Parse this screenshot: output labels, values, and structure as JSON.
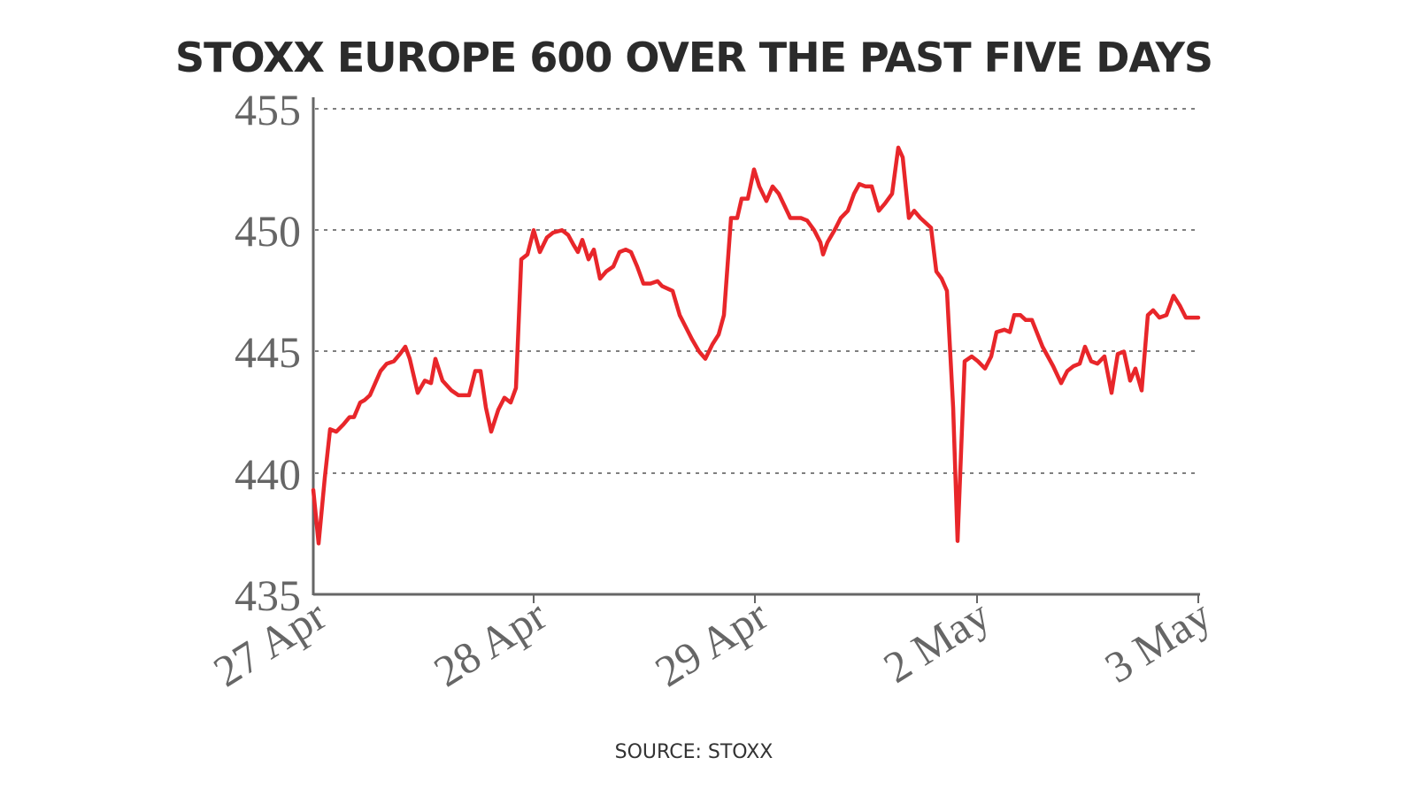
{
  "chart_data": {
    "type": "line",
    "title": "STOXX EUROPE 600 OVER THE PAST FIVE DAYS",
    "source": "SOURCE: STOXX",
    "xlabel": "",
    "ylabel": "",
    "ylim": [
      435,
      455
    ],
    "yticks": [
      435,
      440,
      445,
      450,
      455
    ],
    "xticks": [
      "27 Apr",
      "28 Apr",
      "29 Apr",
      "2 May",
      "3 May"
    ],
    "grid": {
      "y": true,
      "x": false,
      "style": "dotted"
    },
    "legend": null,
    "line_color": "#e8262a",
    "series": [
      {
        "name": "STOXX Europe 600",
        "points": [
          [
            0.0,
            439.3
          ],
          [
            0.006,
            437.1
          ],
          [
            0.013,
            439.8
          ],
          [
            0.019,
            441.8
          ],
          [
            0.026,
            441.7
          ],
          [
            0.034,
            442.0
          ],
          [
            0.041,
            442.3
          ],
          [
            0.046,
            442.3
          ],
          [
            0.053,
            442.9
          ],
          [
            0.058,
            443.0
          ],
          [
            0.064,
            443.2
          ],
          [
            0.07,
            443.7
          ],
          [
            0.076,
            444.2
          ],
          [
            0.083,
            444.5
          ],
          [
            0.091,
            444.6
          ],
          [
            0.098,
            444.9
          ],
          [
            0.104,
            445.2
          ],
          [
            0.109,
            444.7
          ],
          [
            0.118,
            443.3
          ],
          [
            0.126,
            443.8
          ],
          [
            0.133,
            443.7
          ],
          [
            0.138,
            444.7
          ],
          [
            0.146,
            443.8
          ],
          [
            0.156,
            443.4
          ],
          [
            0.164,
            443.2
          ],
          [
            0.171,
            443.2
          ],
          [
            0.176,
            443.2
          ],
          [
            0.183,
            444.2
          ],
          [
            0.189,
            444.2
          ],
          [
            0.195,
            442.7
          ],
          [
            0.201,
            441.7
          ],
          [
            0.209,
            442.6
          ],
          [
            0.216,
            443.1
          ],
          [
            0.223,
            442.9
          ],
          [
            0.229,
            443.5
          ],
          [
            0.235,
            448.8
          ],
          [
            0.242,
            449.0
          ],
          [
            0.249,
            450.0
          ],
          [
            0.256,
            449.1
          ],
          [
            0.264,
            449.7
          ],
          [
            0.271,
            449.9
          ],
          [
            0.281,
            450.0
          ],
          [
            0.288,
            449.8
          ],
          [
            0.294,
            449.4
          ],
          [
            0.299,
            449.1
          ],
          [
            0.304,
            449.6
          ],
          [
            0.311,
            448.8
          ],
          [
            0.317,
            449.2
          ],
          [
            0.324,
            448.0
          ],
          [
            0.331,
            448.3
          ],
          [
            0.339,
            448.5
          ],
          [
            0.346,
            449.1
          ],
          [
            0.353,
            449.2
          ],
          [
            0.359,
            449.1
          ],
          [
            0.366,
            448.5
          ],
          [
            0.373,
            447.8
          ],
          [
            0.381,
            447.8
          ],
          [
            0.389,
            447.9
          ],
          [
            0.394,
            447.7
          ],
          [
            0.406,
            447.5
          ],
          [
            0.414,
            446.5
          ],
          [
            0.421,
            446.0
          ],
          [
            0.428,
            445.5
          ],
          [
            0.436,
            445.0
          ],
          [
            0.443,
            444.7
          ],
          [
            0.451,
            445.3
          ],
          [
            0.458,
            445.7
          ],
          [
            0.464,
            446.5
          ],
          [
            0.472,
            450.5
          ],
          [
            0.479,
            450.5
          ],
          [
            0.484,
            451.3
          ],
          [
            0.491,
            451.3
          ],
          [
            0.498,
            452.5
          ],
          [
            0.504,
            451.8
          ],
          [
            0.512,
            451.2
          ],
          [
            0.519,
            451.8
          ],
          [
            0.526,
            451.5
          ],
          [
            0.539,
            450.5
          ],
          [
            0.551,
            450.5
          ],
          [
            0.558,
            450.4
          ],
          [
            0.566,
            450.0
          ],
          [
            0.573,
            449.5
          ],
          [
            0.576,
            449.0
          ],
          [
            0.581,
            449.5
          ],
          [
            0.589,
            450.0
          ],
          [
            0.596,
            450.5
          ],
          [
            0.604,
            450.8
          ],
          [
            0.611,
            451.5
          ],
          [
            0.617,
            451.9
          ],
          [
            0.624,
            451.8
          ],
          [
            0.631,
            451.8
          ],
          [
            0.639,
            450.8
          ],
          [
            0.646,
            451.1
          ],
          [
            0.654,
            451.5
          ],
          [
            0.661,
            453.4
          ],
          [
            0.666,
            453.0
          ],
          [
            0.673,
            450.5
          ],
          [
            0.679,
            450.8
          ],
          [
            0.686,
            450.5
          ],
          [
            0.692,
            450.3
          ],
          [
            0.698,
            450.1
          ],
          [
            0.704,
            448.3
          ],
          [
            0.71,
            448.0
          ],
          [
            0.716,
            447.5
          ],
          [
            0.723,
            442.7
          ],
          [
            0.728,
            437.2
          ],
          [
            0.736,
            444.6
          ],
          [
            0.744,
            444.8
          ],
          [
            0.751,
            444.6
          ],
          [
            0.759,
            444.3
          ],
          [
            0.766,
            444.8
          ],
          [
            0.772,
            445.8
          ],
          [
            0.781,
            445.9
          ],
          [
            0.787,
            445.8
          ],
          [
            0.792,
            446.5
          ],
          [
            0.799,
            446.5
          ],
          [
            0.805,
            446.3
          ],
          [
            0.812,
            446.3
          ],
          [
            0.824,
            445.2
          ],
          [
            0.836,
            444.4
          ],
          [
            0.845,
            443.7
          ],
          [
            0.852,
            444.2
          ],
          [
            0.859,
            444.4
          ],
          [
            0.866,
            444.5
          ],
          [
            0.872,
            445.2
          ],
          [
            0.879,
            444.6
          ],
          [
            0.886,
            444.5
          ],
          [
            0.894,
            444.8
          ],
          [
            0.902,
            443.3
          ],
          [
            0.909,
            444.9
          ],
          [
            0.916,
            445.0
          ],
          [
            0.923,
            443.8
          ],
          [
            0.929,
            444.3
          ],
          [
            0.936,
            443.4
          ],
          [
            0.943,
            446.5
          ],
          [
            0.949,
            446.7
          ],
          [
            0.956,
            446.4
          ],
          [
            0.964,
            446.5
          ],
          [
            0.972,
            447.3
          ],
          [
            0.979,
            446.9
          ],
          [
            0.986,
            446.4
          ],
          [
            1.0,
            446.4
          ]
        ]
      }
    ],
    "x_note": "x as fraction of span from 27 Apr (0) to 3 May (1)"
  },
  "chart": {
    "title": "STOXX EUROPE 600 OVER THE PAST FIVE DAYS",
    "source": "SOURCE: STOXX",
    "y_labels": [
      "455",
      "450",
      "445",
      "440",
      "435"
    ],
    "x_labels": [
      "27 Apr",
      "28 Apr",
      "29 Apr",
      "2 May",
      "3 May"
    ]
  }
}
